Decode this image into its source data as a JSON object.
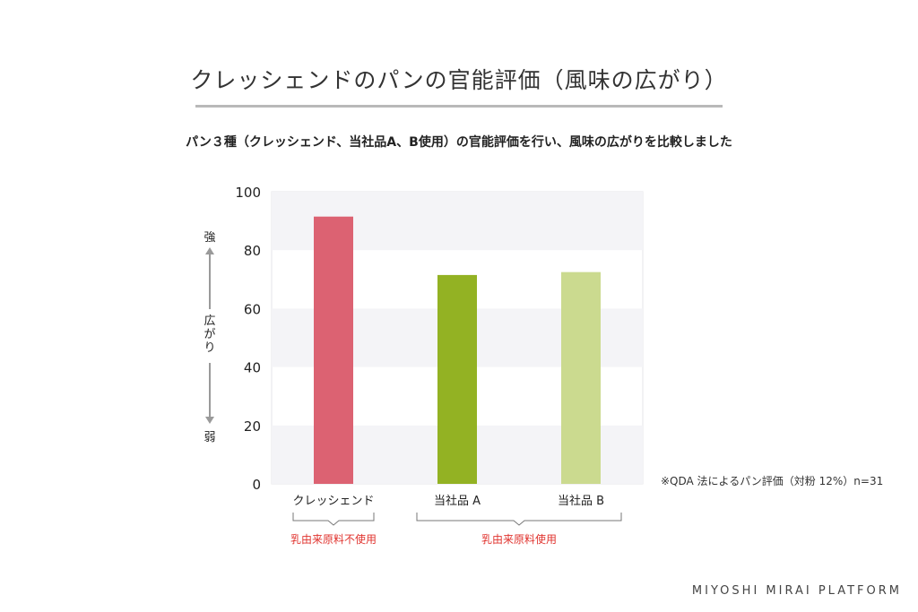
{
  "title": "クレッシェンドのパンの官能評価（風味の広がり）",
  "subtitle": "パン３種（クレッシェンド、当社品A、B使用）の官能評価を行い、風味の広がりを比較しました",
  "chart_data": {
    "type": "bar",
    "categories": [
      "クレッシェンド",
      "当社品 A",
      "当社品 B"
    ],
    "values": [
      91.5,
      71.5,
      72.5
    ],
    "colors": [
      "#dc6272",
      "#93b223",
      "#cbda8f"
    ],
    "ylim": [
      0,
      100
    ],
    "yticks": [
      0,
      20,
      40,
      60,
      80,
      100
    ],
    "grid": "alternating-bands",
    "ylabel": {
      "top": "強",
      "middle": "広がり",
      "bottom": "弱"
    },
    "groups": [
      {
        "label": "乳由来原料不使用",
        "categories": [
          0
        ]
      },
      {
        "label": "乳由来原料使用",
        "categories": [
          1,
          2
        ]
      }
    ],
    "group_label_color": "#e0332e",
    "note": "※QDA 法によるパン評価（対粉 12%）n=31"
  },
  "footer": "MIYOSHI MIRAI PLATFORM"
}
